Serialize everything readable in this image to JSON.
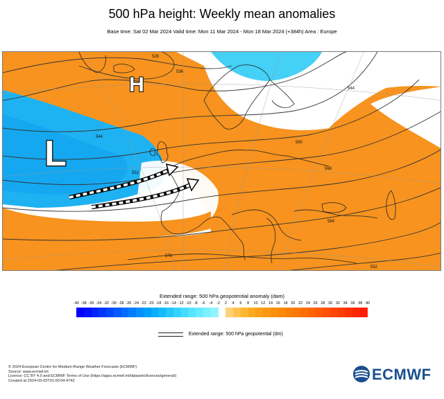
{
  "title": "500 hPa height: Weekly mean anomalies",
  "subtitle": "Base time: Sat 02 Mar 2024 Valid time: Mon 11 Mar 2024 - Mon 18 Mar 2024 (+384h) Area : Europe",
  "map": {
    "high_label": "H",
    "low_label": "L",
    "contour_labels": [
      "528",
      "536",
      "544",
      "552",
      "560",
      "568",
      "576",
      "584",
      "552",
      "544"
    ],
    "colors": {
      "warm_anomaly": "#f7931e",
      "cold_anomaly": "#1fb2f2",
      "cold_light": "#45d0f5",
      "neutral": "#ffffff",
      "coastline": "#222222"
    }
  },
  "legend": {
    "title": "Extended range: 500 hPa geopotential anomaly (dam)",
    "ticks": [
      "-40",
      "-38",
      "-36",
      "-34",
      "-32",
      "-30",
      "-28",
      "-26",
      "-24",
      "-22",
      "-20",
      "-18",
      "-16",
      "-14",
      "-12",
      "-10",
      "-8",
      "-6",
      "-4",
      "-2",
      "2",
      "4",
      "6",
      "8",
      "10",
      "12",
      "14",
      "16",
      "18",
      "20",
      "22",
      "24",
      "26",
      "28",
      "30",
      "32",
      "34",
      "36",
      "38",
      "40"
    ],
    "colors": [
      "#0000ff",
      "#0012ff",
      "#0024ff",
      "#0036ff",
      "#0048ff",
      "#005aff",
      "#006cff",
      "#007eff",
      "#0090ff",
      "#00a0ff",
      "#08b0ff",
      "#14bcff",
      "#24c8ff",
      "#34d2ff",
      "#44dcff",
      "#56e4ff",
      "#68eaff",
      "#7cf0ff",
      "#90f4ff",
      "#ffffff",
      "#ffd27a",
      "#ffc24c",
      "#ffb62e",
      "#ffab20",
      "#ffa018",
      "#ff9812",
      "#ff900e",
      "#ff880a",
      "#ff8008",
      "#ff7806",
      "#ff6e04",
      "#ff6404",
      "#ff5a03",
      "#ff5003",
      "#ff4602",
      "#ff3c02",
      "#ff3201",
      "#ff2801",
      "#ff1e00"
    ],
    "contour_legend": "Extended range: 500 hPa geopotential (dm)"
  },
  "footer": {
    "line1": "© 2024 European Centre for Medium-Range Weather Forecasts (ECMWF)",
    "line2": "Source: www.ecmwf.int",
    "line3": "Licence: CC BY 4.0 and ECMWF Terms of Use (https://apps.ecmwf.int/datasets/licences/general/)",
    "line4": "Created at 2024-03-03T01:00:04.474Z"
  },
  "logo_text": "ECMWF"
}
